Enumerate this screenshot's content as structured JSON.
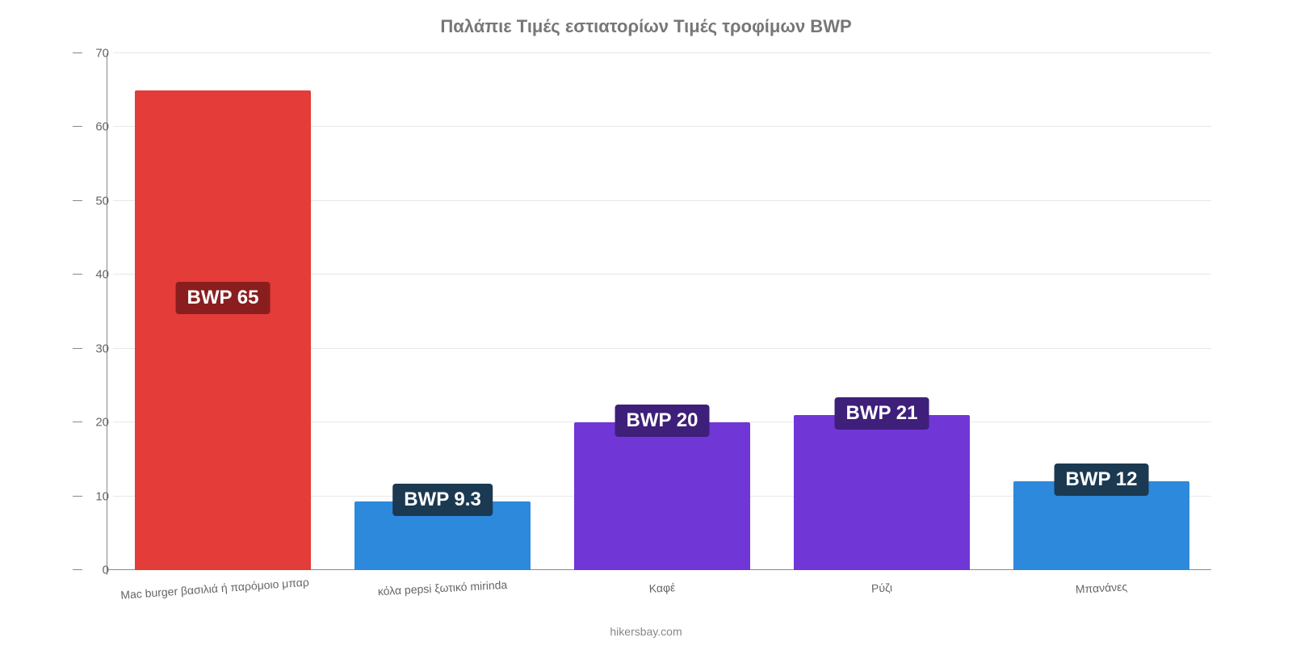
{
  "chart": {
    "type": "bar",
    "title": "Παλάπιε Τιμές εστιατορίων Τιμές τροφίμων BWP",
    "title_color": "#777777",
    "title_fontsize": 22,
    "background_color": "#ffffff",
    "grid_color": "#e8e8e8",
    "axis_color": "#888888",
    "label_color": "#666666",
    "yaxis": {
      "min": 0,
      "max": 70,
      "ticks": [
        0,
        10,
        20,
        30,
        40,
        50,
        60,
        70
      ],
      "tick_labels": [
        "0",
        "10",
        "20",
        "30",
        "40",
        "50",
        "60",
        "70"
      ]
    },
    "categories": [
      "Mac burger βασιλιά ή παρόμοιο μπαρ",
      "κόλα pepsi ξωτικό mirinda",
      "Καφέ",
      "Ρύζι",
      "Μπανάνες"
    ],
    "values": [
      65,
      9.3,
      20,
      21,
      12
    ],
    "bar_labels": [
      "BWP 65",
      "BWP 9.3",
      "BWP 20",
      "BWP 21",
      "BWP 12"
    ],
    "bar_colors": [
      "#e33c39",
      "#2d89db",
      "#7136d6",
      "#7136d6",
      "#2d89db"
    ],
    "label_bg_colors": [
      "#8a1e1e",
      "#1b3951",
      "#3e1f7a",
      "#3e1f7a",
      "#1b3951"
    ],
    "label_fontsize": 24,
    "xlabel_fontsize": 14,
    "ylabel_fontsize": 15,
    "bar_width_pct": 80,
    "attribution": "hikersbay.com"
  }
}
